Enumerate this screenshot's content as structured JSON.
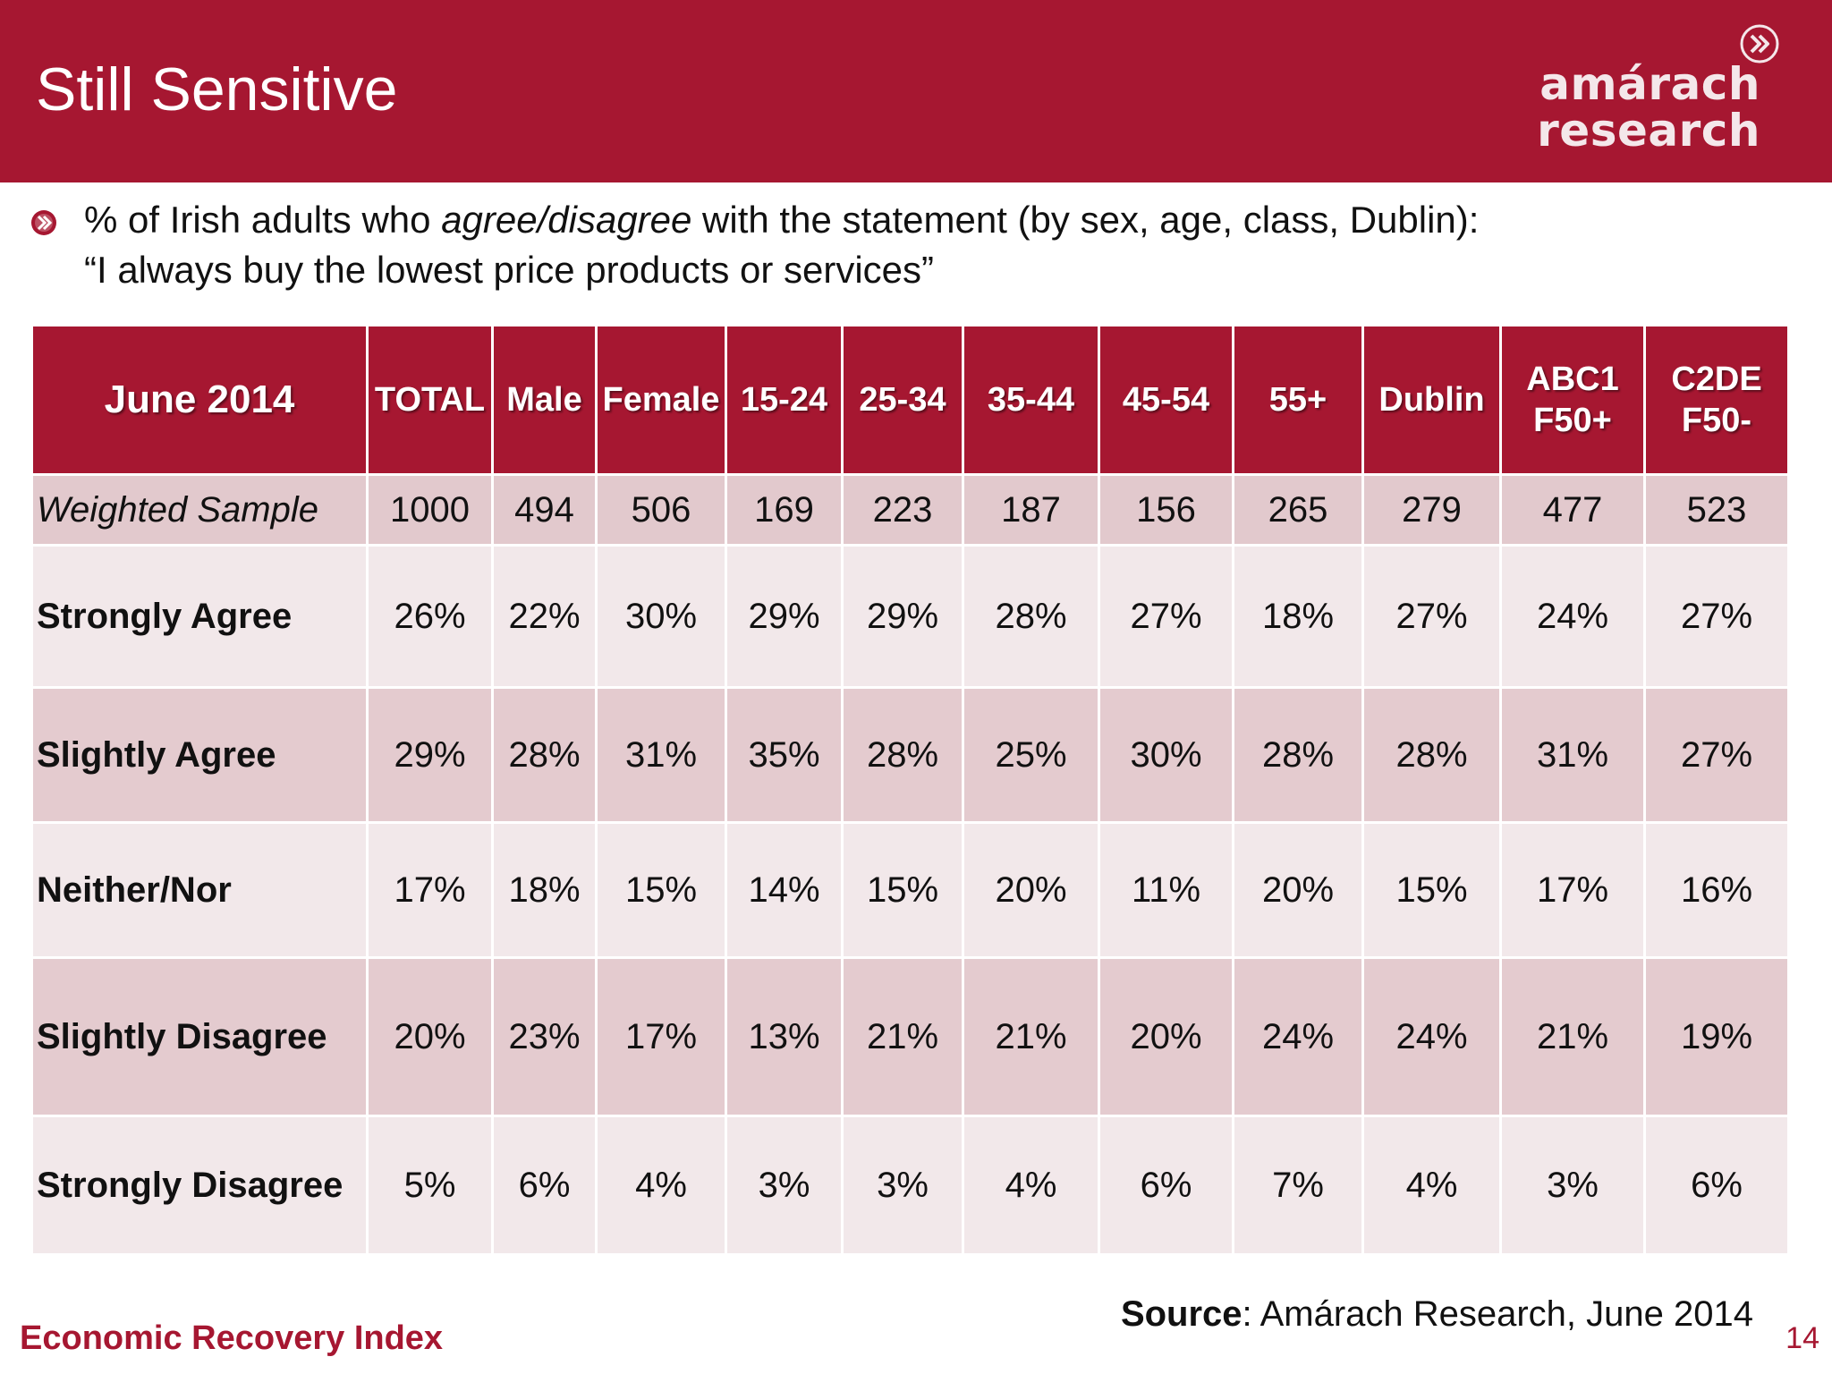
{
  "header": {
    "title": "Still Sensitive",
    "logo": {
      "line1": "amárach",
      "line2": "research",
      "icon": "chevron-circle-icon"
    }
  },
  "subtitle": {
    "bullet_icon": "chevron-bullet-icon",
    "line1_pre": "% of Irish adults who ",
    "line1_em": "agree/disagree",
    "line1_post": " with the statement (by sex, age, class, Dublin):",
    "line2": "“I always buy the lowest price products or services”"
  },
  "table": {
    "corner": "June 2014",
    "columns": [
      {
        "line1": "TOTAL",
        "line2": ""
      },
      {
        "line1": "Male",
        "line2": ""
      },
      {
        "line1": "Female",
        "line2": ""
      },
      {
        "line1": "15-24",
        "line2": ""
      },
      {
        "line1": "25-34",
        "line2": ""
      },
      {
        "line1": "35-44",
        "line2": ""
      },
      {
        "line1": "45-54",
        "line2": ""
      },
      {
        "line1": "55+",
        "line2": ""
      },
      {
        "line1": "Dublin",
        "line2": ""
      },
      {
        "line1": "ABC1",
        "line2": "F50+"
      },
      {
        "line1": "C2DE",
        "line2": "F50-"
      }
    ],
    "rows": [
      {
        "label": "Weighted Sample",
        "values": [
          "1000",
          "494",
          "506",
          "169",
          "223",
          "187",
          "156",
          "265",
          "279",
          "477",
          "523"
        ]
      },
      {
        "label": "Strongly Agree",
        "values": [
          "26%",
          "22%",
          "30%",
          "29%",
          "29%",
          "28%",
          "27%",
          "18%",
          "27%",
          "24%",
          "27%"
        ]
      },
      {
        "label": "Slightly Agree",
        "values": [
          "29%",
          "28%",
          "31%",
          "35%",
          "28%",
          "25%",
          "30%",
          "28%",
          "28%",
          "31%",
          "27%"
        ]
      },
      {
        "label": "Neither/Nor",
        "values": [
          "17%",
          "18%",
          "15%",
          "14%",
          "15%",
          "20%",
          "11%",
          "20%",
          "15%",
          "17%",
          "16%"
        ]
      },
      {
        "label": "Slightly Disagree",
        "values": [
          "20%",
          "23%",
          "17%",
          "13%",
          "21%",
          "21%",
          "20%",
          "24%",
          "24%",
          "21%",
          "19%"
        ]
      },
      {
        "label": "Strongly Disagree",
        "values": [
          "5%",
          "6%",
          "4%",
          "3%",
          "3%",
          "4%",
          "6%",
          "7%",
          "4%",
          "3%",
          "6%"
        ]
      }
    ]
  },
  "footer": {
    "left": "Economic Recovery Index",
    "source_label": "Source",
    "source_text": ": Amárach Research, June 2014",
    "page_number": "14"
  },
  "colors": {
    "brand": "#a61731",
    "row_light": "#f2e8ea",
    "row_dark": "#e4cbcf"
  }
}
